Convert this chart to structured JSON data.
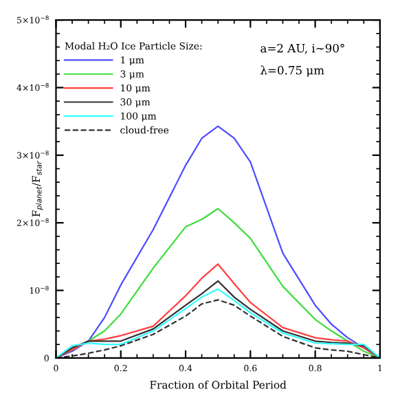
{
  "chart_data": {
    "type": "line",
    "xlabel": "Fraction of Orbital Period",
    "ylabel": "F$_{planet}$/F$_{star}$",
    "legend_title": "Modal H₂O Ice Particle Size:",
    "annotations": [
      "a=2 AU, i~90°",
      "λ=0.75 μm"
    ],
    "x": [
      0,
      0.05,
      0.1,
      0.15,
      0.2,
      0.3,
      0.4,
      0.45,
      0.5,
      0.55,
      0.6,
      0.7,
      0.8,
      0.85,
      0.9,
      0.95,
      1
    ],
    "series": [
      {
        "name": "1 μm",
        "color": "#4b4bff",
        "line_style": "solid",
        "values": [
          0,
          1e-09,
          2.5e-09,
          6e-09,
          1.08e-08,
          1.9e-08,
          2.85e-08,
          3.25e-08,
          3.43e-08,
          3.25e-08,
          2.9e-08,
          1.55e-08,
          7.8e-09,
          5e-09,
          3e-09,
          1.5e-09,
          0
        ]
      },
      {
        "name": "3 μm",
        "color": "#3cdc3c",
        "line_style": "solid",
        "values": [
          0,
          1.2e-09,
          2.5e-09,
          4e-09,
          6.5e-09,
          1.33e-08,
          1.94e-08,
          2.05e-08,
          2.21e-08,
          2e-08,
          1.77e-08,
          1.06e-08,
          5.7e-09,
          4e-09,
          2.5e-09,
          1e-09,
          0
        ]
      },
      {
        "name": "10 μm",
        "color": "#ff4040",
        "line_style": "solid",
        "values": [
          0,
          1.2e-09,
          2.5e-09,
          2.8e-09,
          3.3e-09,
          4.7e-09,
          9.2e-09,
          1.18e-08,
          1.39e-08,
          1.1e-08,
          8.2e-09,
          4.5e-09,
          3e-09,
          2.7e-09,
          2.5e-09,
          1.5e-09,
          0
        ]
      },
      {
        "name": "30 μm",
        "color": "#303030",
        "line_style": "solid",
        "values": [
          0,
          1.5e-09,
          2.5e-09,
          2.5e-09,
          2.5e-09,
          4.3e-09,
          7.8e-09,
          9.5e-09,
          1.14e-08,
          9e-09,
          7.2e-09,
          4e-09,
          2.5e-09,
          2.3e-09,
          2.2e-09,
          1.8e-09,
          0
        ]
      },
      {
        "name": "100 μm",
        "color": "#30ffff",
        "line_style": "solid",
        "values": [
          0,
          1.8e-09,
          2.2e-09,
          2e-09,
          2e-09,
          4e-09,
          7.3e-09,
          9e-09,
          1.02e-08,
          8.5e-09,
          6.7e-09,
          3.7e-09,
          2.2e-09,
          2.1e-09,
          2e-09,
          2e-09,
          0
        ]
      },
      {
        "name": "cloud-free",
        "color": "#303030",
        "line_style": "dashed",
        "values": [
          0,
          3e-10,
          7e-10,
          1.2e-09,
          1.8e-09,
          3.5e-09,
          6.2e-09,
          8e-09,
          8.6e-09,
          7.8e-09,
          6.2e-09,
          3.2e-09,
          1.5e-09,
          1.2e-09,
          1e-09,
          5e-10,
          0
        ]
      }
    ],
    "xlim": [
      0,
      1
    ],
    "xticks": [
      0,
      0.2,
      0.4,
      0.6,
      0.8,
      1
    ],
    "ylim": [
      0,
      5e-08
    ],
    "yticks": [
      0,
      {
        "value": 1e-08,
        "label": "10$^{−8}$"
      },
      {
        "value": 2e-08,
        "label": "2×10$^{−8}$"
      },
      {
        "value": 3e-08,
        "label": "3×10$^{−8}$"
      },
      {
        "value": 4e-08,
        "label": "4×10$^{−8}$"
      },
      {
        "value": 5e-08,
        "label": "5×10$^{−8}$"
      }
    ],
    "legend": "top left",
    "grid": false,
    "tick_labels": true
  }
}
